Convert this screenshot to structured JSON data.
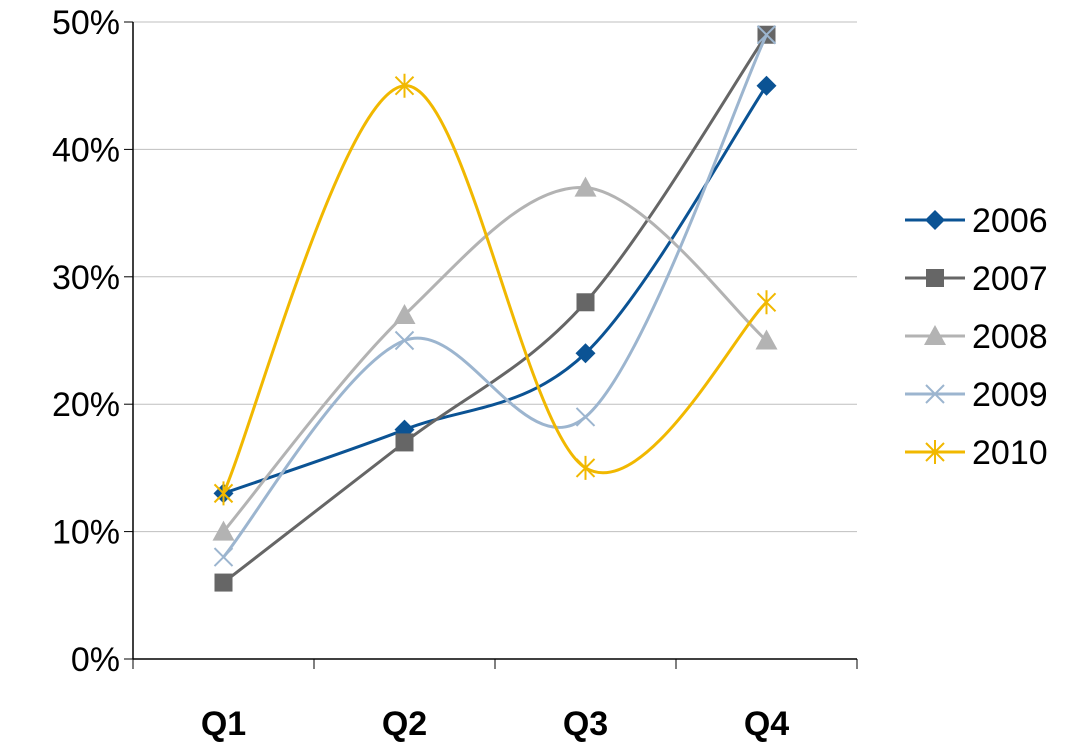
{
  "chart_data": {
    "type": "line",
    "smoothed": true,
    "categories": [
      "Q1",
      "Q2",
      "Q3",
      "Q4"
    ],
    "ylim": [
      0,
      0.5
    ],
    "y_ticks": [
      {
        "value": 0,
        "label": "0%"
      },
      {
        "value": 0.1,
        "label": "10%"
      },
      {
        "value": 0.2,
        "label": "20%"
      },
      {
        "value": 0.3,
        "label": "30%"
      },
      {
        "value": 0.4,
        "label": "40%"
      },
      {
        "value": 0.5,
        "label": "50%"
      }
    ],
    "grid": "horizontal",
    "legend_position": "right",
    "title": "",
    "xlabel": "",
    "ylabel": "",
    "series": [
      {
        "name": "2006",
        "values": [
          0.13,
          0.18,
          0.24,
          0.45
        ],
        "color": "#0B5394",
        "marker": "diamond"
      },
      {
        "name": "2007",
        "values": [
          0.06,
          0.17,
          0.28,
          0.49
        ],
        "color": "#666666",
        "marker": "square"
      },
      {
        "name": "2008",
        "values": [
          0.1,
          0.27,
          0.37,
          0.25
        ],
        "color": "#B3B3B3",
        "marker": "triangle"
      },
      {
        "name": "2009",
        "values": [
          0.08,
          0.25,
          0.19,
          0.49
        ],
        "color": "#9CB5CF",
        "marker": "x"
      },
      {
        "name": "2010",
        "values": [
          0.13,
          0.45,
          0.15,
          0.28
        ],
        "color": "#F1B800",
        "marker": "star"
      }
    ]
  }
}
